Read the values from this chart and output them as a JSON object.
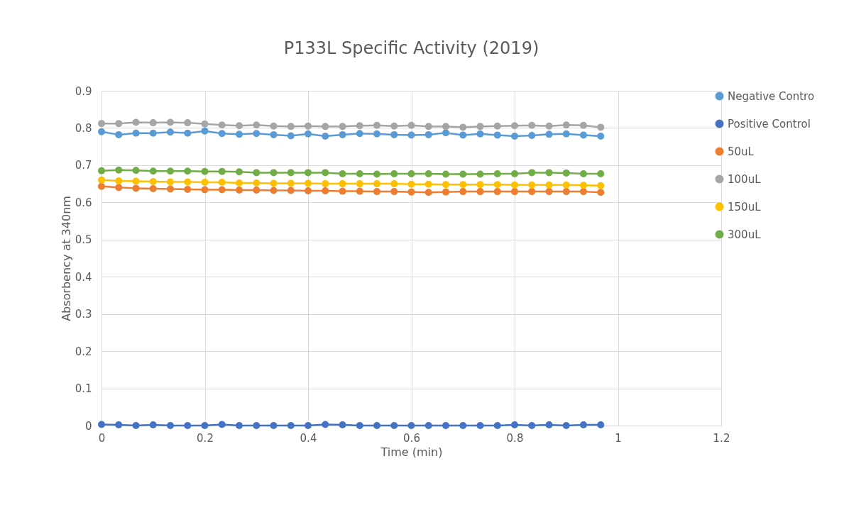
{
  "chart_data": {
    "type": "line",
    "title": "P133L Specific Activity (2019)",
    "xlabel": "Time (min)",
    "ylabel": "Absorbency at 340nm",
    "x": [
      0,
      0.0333,
      0.0667,
      0.1,
      0.1333,
      0.1667,
      0.2,
      0.2333,
      0.2667,
      0.3,
      0.3333,
      0.3667,
      0.4,
      0.4333,
      0.4667,
      0.5,
      0.5333,
      0.5667,
      0.6,
      0.6333,
      0.6667,
      0.7,
      0.7333,
      0.7667,
      0.8,
      0.8333,
      0.8667,
      0.9,
      0.9333,
      0.9667
    ],
    "series": [
      {
        "name": "Negative Contro",
        "color": "#5b9bd5",
        "values": [
          0.79,
          0.782,
          0.786,
          0.786,
          0.789,
          0.786,
          0.792,
          0.785,
          0.783,
          0.785,
          0.782,
          0.779,
          0.784,
          0.778,
          0.782,
          0.785,
          0.784,
          0.782,
          0.781,
          0.782,
          0.787,
          0.781,
          0.784,
          0.781,
          0.778,
          0.78,
          0.783,
          0.784,
          0.781,
          0.778
        ]
      },
      {
        "name": "Positive Control",
        "color": "#4472c4",
        "values": [
          0.003,
          0.002,
          0,
          0.002,
          0,
          0,
          0,
          0.003,
          0,
          0,
          0,
          0,
          0,
          0.003,
          0.002,
          0,
          0,
          0,
          0,
          0,
          0,
          0,
          0,
          0,
          0.002,
          0,
          0.002,
          0,
          0.002,
          0.002
        ]
      },
      {
        "name": "50uL",
        "color": "#ed7d31",
        "values": [
          0.643,
          0.64,
          0.638,
          0.637,
          0.636,
          0.635,
          0.634,
          0.634,
          0.633,
          0.633,
          0.632,
          0.632,
          0.631,
          0.631,
          0.63,
          0.63,
          0.629,
          0.629,
          0.628,
          0.627,
          0.628,
          0.629,
          0.629,
          0.629,
          0.629,
          0.629,
          0.629,
          0.629,
          0.629,
          0.627
        ]
      },
      {
        "name": "100uL",
        "color": "#a5a5a5",
        "values": [
          0.812,
          0.812,
          0.815,
          0.814,
          0.815,
          0.814,
          0.811,
          0.808,
          0.806,
          0.808,
          0.805,
          0.804,
          0.805,
          0.804,
          0.804,
          0.806,
          0.807,
          0.805,
          0.807,
          0.804,
          0.804,
          0.802,
          0.804,
          0.805,
          0.806,
          0.807,
          0.805,
          0.808,
          0.807,
          0.802
        ]
      },
      {
        "name": "150uL",
        "color": "#ffc000",
        "values": [
          0.66,
          0.658,
          0.657,
          0.656,
          0.655,
          0.655,
          0.654,
          0.654,
          0.652,
          0.652,
          0.651,
          0.651,
          0.651,
          0.65,
          0.65,
          0.65,
          0.65,
          0.65,
          0.649,
          0.649,
          0.648,
          0.648,
          0.648,
          0.648,
          0.647,
          0.647,
          0.647,
          0.647,
          0.646,
          0.645
        ]
      },
      {
        "name": "300uL",
        "color": "#70ad47",
        "values": [
          0.685,
          0.687,
          0.686,
          0.684,
          0.684,
          0.684,
          0.683,
          0.683,
          0.682,
          0.68,
          0.68,
          0.68,
          0.68,
          0.68,
          0.677,
          0.677,
          0.676,
          0.677,
          0.677,
          0.677,
          0.676,
          0.676,
          0.676,
          0.677,
          0.677,
          0.68,
          0.68,
          0.679,
          0.677,
          0.677
        ]
      }
    ],
    "xlim": [
      0,
      1.2
    ],
    "xticks": [
      0,
      0.2,
      0.4,
      0.6,
      0.8,
      1,
      1.2
    ],
    "ylim": [
      0,
      0.9
    ],
    "yticks": [
      0,
      0.1,
      0.2,
      0.3,
      0.4,
      0.5,
      0.6,
      0.7,
      0.8,
      0.9
    ],
    "grid": true,
    "legend": "right",
    "marker": "circle",
    "line_style": "solid"
  }
}
